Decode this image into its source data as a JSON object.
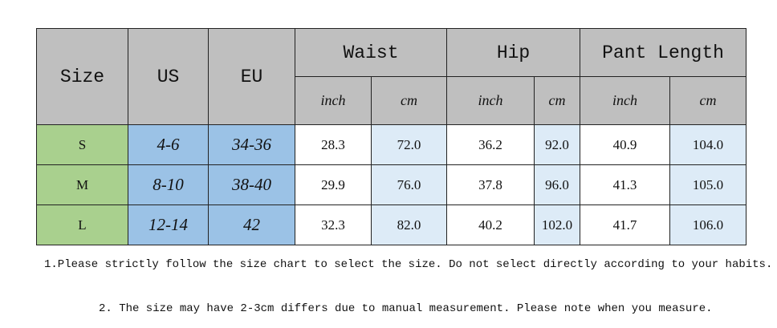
{
  "table": {
    "headers": {
      "size": "Size",
      "us": "US",
      "eu": "EU",
      "groups": [
        "Waist",
        "Hip",
        "Pant Length"
      ],
      "units": [
        "inch",
        "cm",
        "inch",
        "cm",
        "inch",
        "cm"
      ]
    },
    "rows": [
      [
        "S",
        "4-6",
        "34-36",
        "28.3",
        "72.0",
        "36.2",
        "92.0",
        "40.9",
        "104.0"
      ],
      [
        "M",
        "8-10",
        "38-40",
        "29.9",
        "76.0",
        "37.8",
        "96.0",
        "41.3",
        "105.0"
      ],
      [
        "L",
        "12-14",
        "42",
        "32.3",
        "82.0",
        "40.2",
        "102.0",
        "41.7",
        "106.0"
      ]
    ]
  },
  "notes": [
    "1.Please strictly follow the size chart to select the size. Do not select directly according to your habits.",
    "2. The size may have 2-3cm differs due to manual measurement. Please note when you measure."
  ]
}
